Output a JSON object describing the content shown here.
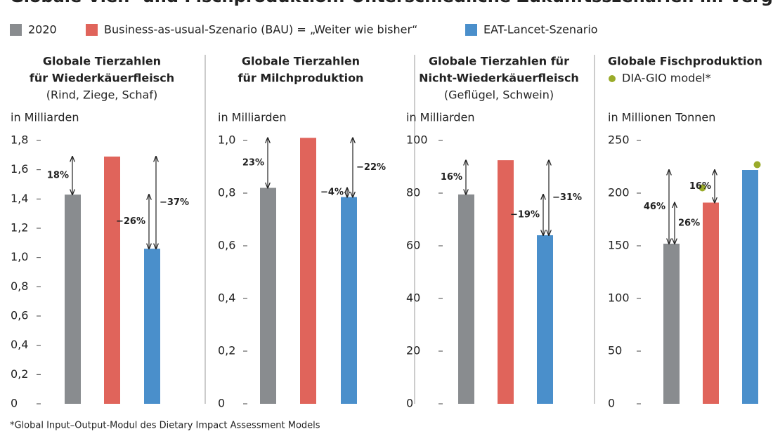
{
  "title": "Globale Vieh- und Fischproduktion: Unterschiedliche Zukunftsszenarien im Vergleich",
  "legend": [
    {
      "name": "2020",
      "color": "#898c8f"
    },
    {
      "name": "Business-as-usual-Szenario (BAU) = „Weiter wie bisher“",
      "color": "#e0645b"
    },
    {
      "name": "EAT-Lancet-Szenario",
      "color": "#4a8fcb"
    }
  ],
  "chart_data": [
    {
      "type": "bar",
      "title": [
        "Globale Tierzahlen",
        "für Wiederkäuerfleisch"
      ],
      "subtitle": "(Rind, Ziege, Schaf)",
      "ylabel": "in Milliarden",
      "values": [
        1.43,
        1.69,
        1.06
      ],
      "ylim": [
        0,
        1.8
      ],
      "yticks": [
        0,
        {
          "value": 0.2,
          "label": "0,2"
        },
        {
          "value": 0.4,
          "label": "0,4"
        },
        {
          "value": 0.6,
          "label": "0,6"
        },
        {
          "value": 0.8,
          "label": "0,8"
        },
        {
          "value": 1.0,
          "label": "1,0"
        },
        {
          "value": 1.2,
          "label": "1,2"
        },
        {
          "value": 1.4,
          "label": "1,4"
        },
        {
          "value": 1.6,
          "label": "1,6"
        },
        {
          "value": 1.8,
          "label": "1,8"
        }
      ],
      "annotations": [
        "18%",
        "−26%",
        "−37%"
      ]
    },
    {
      "type": "bar",
      "title": [
        "Globale Tierzahlen",
        "für Milchproduktion"
      ],
      "ylabel": "in Milliarden",
      "values": [
        0.82,
        1.01,
        0.785
      ],
      "ylim": [
        0,
        1.0
      ],
      "yticks": [
        0,
        {
          "value": 0.2,
          "label": "0,2"
        },
        {
          "value": 0.4,
          "label": "0,4"
        },
        {
          "value": 0.6,
          "label": "0,6"
        },
        {
          "value": 0.8,
          "label": "0,8"
        },
        {
          "value": 1.0,
          "label": "1,0"
        }
      ],
      "annotations": [
        "23%",
        "−4%",
        "−22%"
      ]
    },
    {
      "type": "bar",
      "title": [
        "Globale Tierzahlen für",
        "Nicht-Wiederkäuerfleisch"
      ],
      "subtitle": "(Geflügel, Schwein)",
      "ylabel": "in Milliarden",
      "values": [
        79.5,
        92.5,
        64
      ],
      "ylim": [
        0,
        100
      ],
      "yticks": [
        0,
        20,
        40,
        60,
        80,
        100
      ],
      "annotations": [
        "16%",
        "−19%",
        "−31%"
      ]
    },
    {
      "type": "bar",
      "title": [
        "Globale Fischproduktion"
      ],
      "markers": {
        "name": "DIA-GIO model*",
        "color": "#9aab2a",
        "values": [
          null,
          205,
          227
        ]
      },
      "ylabel": "in Millionen Tonnen",
      "values": [
        152,
        191,
        222
      ],
      "ylim": [
        0,
        250
      ],
      "yticks": [
        0,
        50,
        100,
        150,
        200,
        250
      ],
      "annotations": [
        "46%",
        "26%",
        "16%"
      ]
    }
  ],
  "footnote": "*Global Input–Output-Modul des Dietary Impact Assessment Models"
}
